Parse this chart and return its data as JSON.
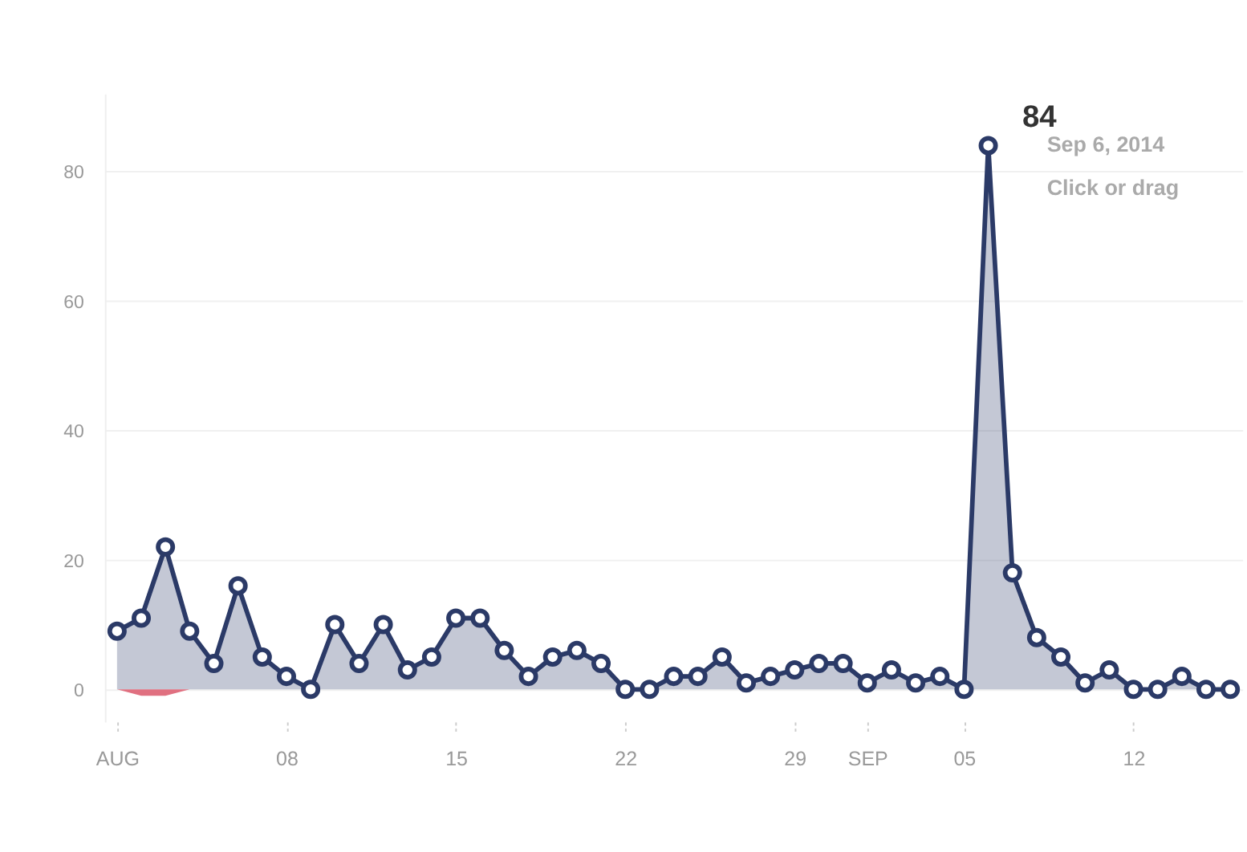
{
  "chart_data": {
    "type": "area",
    "x": [
      "2014-08-01",
      "2014-08-02",
      "2014-08-03",
      "2014-08-04",
      "2014-08-05",
      "2014-08-06",
      "2014-08-07",
      "2014-08-08",
      "2014-08-09",
      "2014-08-10",
      "2014-08-11",
      "2014-08-12",
      "2014-08-13",
      "2014-08-14",
      "2014-08-15",
      "2014-08-16",
      "2014-08-17",
      "2014-08-18",
      "2014-08-19",
      "2014-08-20",
      "2014-08-21",
      "2014-08-22",
      "2014-08-23",
      "2014-08-24",
      "2014-08-25",
      "2014-08-26",
      "2014-08-27",
      "2014-08-28",
      "2014-08-29",
      "2014-08-30",
      "2014-08-31",
      "2014-09-01",
      "2014-09-02",
      "2014-09-03",
      "2014-09-04",
      "2014-09-05",
      "2014-09-06",
      "2014-09-07",
      "2014-09-08",
      "2014-09-09",
      "2014-09-10",
      "2014-09-11",
      "2014-09-12",
      "2014-09-13",
      "2014-09-14",
      "2014-09-15",
      "2014-09-16"
    ],
    "series": [
      {
        "color": "#2b3a67",
        "marker": "circle",
        "values": [
          9,
          11,
          22,
          9,
          4,
          16,
          5,
          2,
          0,
          10,
          4,
          10,
          3,
          5,
          11,
          11,
          6,
          2,
          5,
          6,
          4,
          0,
          0,
          2,
          2,
          5,
          1,
          2,
          3,
          4,
          4,
          1,
          3,
          1,
          2,
          0,
          84,
          18,
          8,
          5,
          1,
          3,
          0,
          0,
          2,
          0,
          0
        ]
      },
      {
        "color": "#e07080",
        "type": "area",
        "marker": "none",
        "values": [
          0,
          -1,
          -1,
          0,
          null,
          null,
          null,
          null,
          null,
          null,
          null,
          null,
          null,
          null,
          null,
          null,
          null,
          null,
          null,
          null,
          null,
          null,
          null,
          null,
          null,
          null,
          null,
          null,
          null,
          null,
          null,
          null,
          null,
          null,
          null,
          null,
          null,
          null,
          null,
          null,
          null,
          null,
          null,
          null,
          null,
          null,
          null
        ]
      }
    ],
    "xlim": [
      "2014-07-31T12:00",
      "2014-09-16T12:00"
    ],
    "xticks": [
      {
        "value": "2014-08-01",
        "label": "AUG"
      },
      {
        "value": "2014-08-08",
        "label": "08"
      },
      {
        "value": "2014-08-15",
        "label": "15"
      },
      {
        "value": "2014-08-22",
        "label": "22"
      },
      {
        "value": "2014-08-29",
        "label": "29"
      },
      {
        "value": "2014-09-01",
        "label": "SEP"
      },
      {
        "value": "2014-09-05",
        "label": "05"
      },
      {
        "value": "2014-09-12",
        "label": "12"
      }
    ],
    "ylim": [
      -5,
      92
    ],
    "yticks": [
      0,
      20,
      40,
      60,
      80
    ],
    "grid": "y",
    "annotations": [
      {
        "text": "84",
        "x": "2014-09-06",
        "y": 84
      },
      "Sep 6, 2014",
      "Click or drag"
    ]
  }
}
